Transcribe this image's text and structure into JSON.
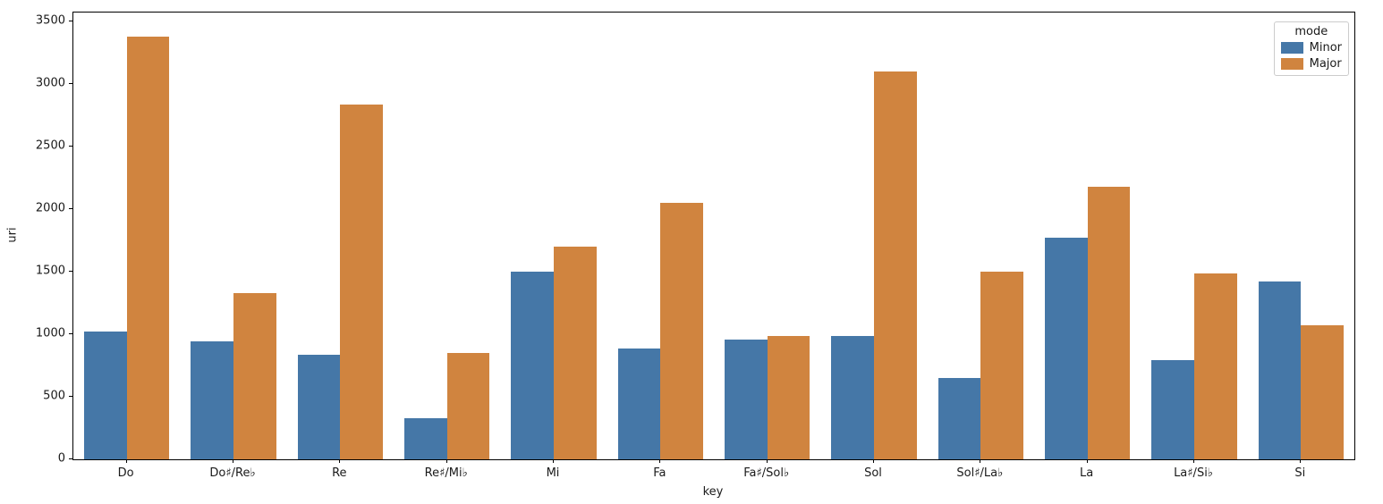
{
  "chart_data": {
    "type": "bar",
    "title": "",
    "xlabel": "key",
    "ylabel": "uri",
    "categories": [
      "Do",
      "Do♯/Re♭",
      "Re",
      "Re♯/Mi♭",
      "Mi",
      "Fa",
      "Fa♯/Sol♭",
      "Sol",
      "Sol♯/La♭",
      "La",
      "La♯/Si♭",
      "Si"
    ],
    "series": [
      {
        "name": "Minor",
        "color": "#4577a7",
        "values": [
          1020,
          945,
          835,
          330,
          1500,
          890,
          960,
          990,
          650,
          1775,
          795,
          1425
        ]
      },
      {
        "name": "Major",
        "color": "#d0843f",
        "values": [
          3380,
          1330,
          2840,
          850,
          1700,
          2050,
          985,
          3100,
          1505,
          2180,
          1485,
          1075
        ]
      }
    ],
    "ylim": [
      0,
      3575
    ],
    "yticks": [
      0,
      500,
      1000,
      1500,
      2000,
      2500,
      3000,
      3500
    ],
    "grid": "off",
    "legend": {
      "title": "mode",
      "position": "upper right"
    }
  }
}
